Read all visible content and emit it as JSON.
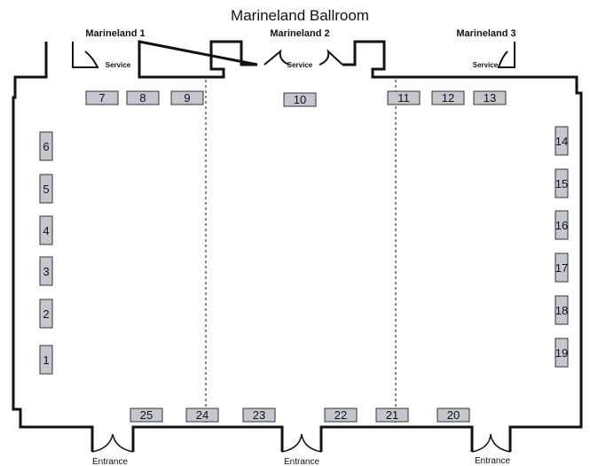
{
  "title": "Marineland Ballroom",
  "rooms": [
    {
      "label": "Marineland 1"
    },
    {
      "label": "Marineland 2"
    },
    {
      "label": "Marineland 3"
    }
  ],
  "service_labels": [
    "Service",
    "Service",
    "Service"
  ],
  "entrance_labels": [
    "Entrance",
    "Entrance",
    "Entrance"
  ],
  "booths": [
    {
      "number": "1"
    },
    {
      "number": "2"
    },
    {
      "number": "3"
    },
    {
      "number": "4"
    },
    {
      "number": "5"
    },
    {
      "number": "6"
    },
    {
      "number": "7"
    },
    {
      "number": "8"
    },
    {
      "number": "9"
    },
    {
      "number": "10"
    },
    {
      "number": "11"
    },
    {
      "number": "12"
    },
    {
      "number": "13"
    },
    {
      "number": "14"
    },
    {
      "number": "15"
    },
    {
      "number": "16"
    },
    {
      "number": "17"
    },
    {
      "number": "18"
    },
    {
      "number": "19"
    },
    {
      "number": "20"
    },
    {
      "number": "21"
    },
    {
      "number": "22"
    },
    {
      "number": "23"
    },
    {
      "number": "24"
    },
    {
      "number": "25"
    }
  ],
  "colors": {
    "booth_fill": "#c4c7ce",
    "wall": "#111111"
  }
}
